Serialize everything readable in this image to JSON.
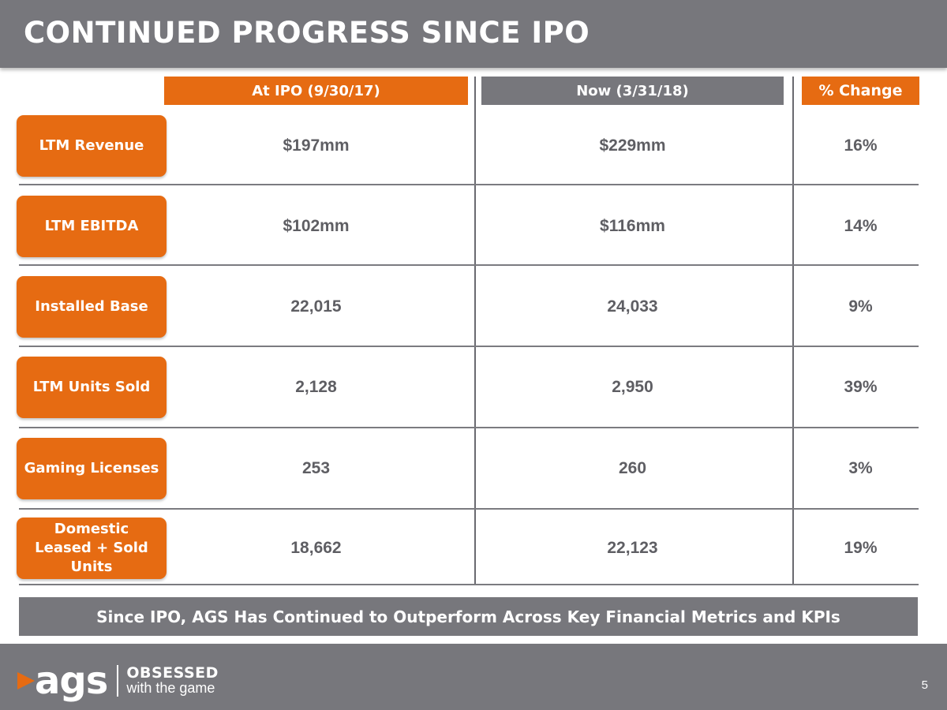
{
  "title": "CONTINUED PROGRESS SINCE IPO",
  "columns": {
    "ipo": "At IPO (9/30/17)",
    "now": "Now (3/31/18)",
    "change": "% Change"
  },
  "rows": [
    {
      "label": "LTM Revenue",
      "ipo": "$197mm",
      "now": "$229mm",
      "change": "16%"
    },
    {
      "label": "LTM EBITDA",
      "ipo": "$102mm",
      "now": "$116mm",
      "change": "14%"
    },
    {
      "label": "Installed Base",
      "ipo": "22,015",
      "now": "24,033",
      "change": "9%"
    },
    {
      "label": "LTM Units Sold",
      "ipo": "2,128",
      "now": "2,950",
      "change": "39%"
    },
    {
      "label": "Gaming Licenses",
      "ipo": "253",
      "now": "260",
      "change": "3%"
    },
    {
      "label": "Domestic Leased + Sold Units",
      "ipo": "18,662",
      "now": "22,123",
      "change": "19%"
    }
  ],
  "summary": "Since IPO, AGS Has Continued to Outperform Across Key Financial Metrics and KPIs",
  "footer": {
    "logo_text": "ags",
    "tagline_1": "OBSESSED",
    "tagline_2": "with the game",
    "page_number": "5"
  },
  "colors": {
    "accent_orange": "#e66b12",
    "bar_gray": "#77777c",
    "value_text": "#5e5e63"
  }
}
